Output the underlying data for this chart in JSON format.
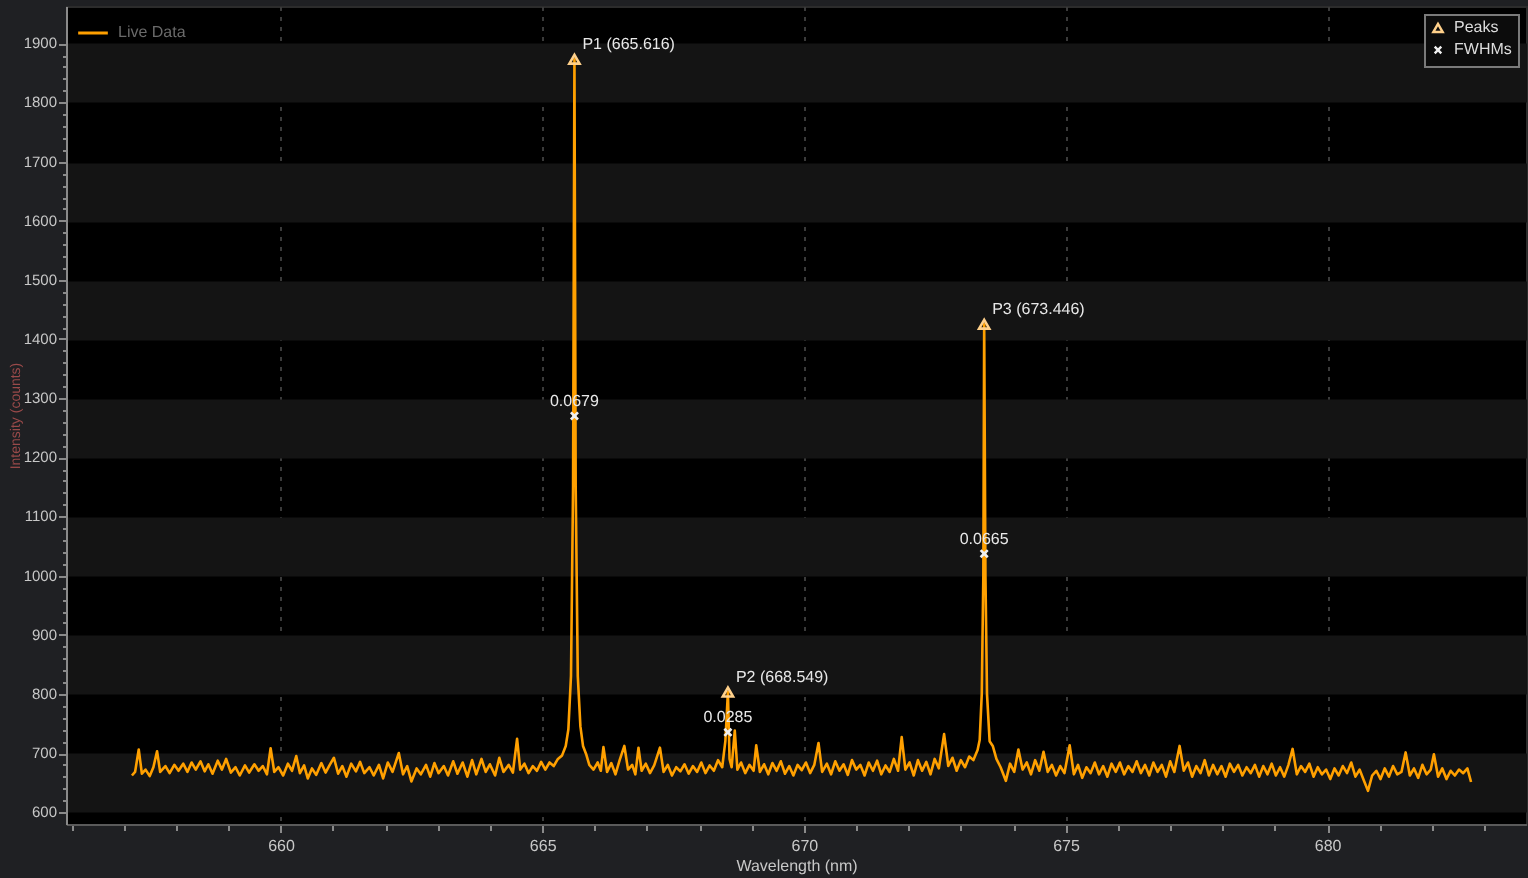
{
  "chart_data": {
    "type": "line",
    "xlabel": "Wavelength (nm)",
    "ylabel": "Intensity (counts)",
    "xlim": [
      655.9,
      683.8
    ],
    "ylim": [
      580,
      1963
    ],
    "xticks": [
      {
        "value": 656,
        "label": null
      },
      {
        "value": 657,
        "label": null
      },
      {
        "value": 658,
        "label": null
      },
      {
        "value": 659,
        "label": null
      },
      660,
      {
        "value": 661,
        "label": null
      },
      {
        "value": 662,
        "label": null
      },
      {
        "value": 663,
        "label": null
      },
      {
        "value": 664,
        "label": null
      },
      665,
      {
        "value": 666,
        "label": null
      },
      {
        "value": 667,
        "label": null
      },
      {
        "value": 668,
        "label": null
      },
      {
        "value": 669,
        "label": null
      },
      670,
      {
        "value": 671,
        "label": null
      },
      {
        "value": 672,
        "label": null
      },
      {
        "value": 673,
        "label": null
      },
      {
        "value": 674,
        "label": null
      },
      675,
      {
        "value": 676,
        "label": null
      },
      {
        "value": 677,
        "label": null
      },
      {
        "value": 678,
        "label": null
      },
      {
        "value": 679,
        "label": null
      },
      680,
      {
        "value": 681,
        "label": null
      },
      {
        "value": 682,
        "label": null
      },
      {
        "value": 683,
        "label": null
      }
    ],
    "yticks": [
      600,
      {
        "value": 620,
        "label": null
      },
      {
        "value": 640,
        "label": null
      },
      {
        "value": 660,
        "label": null
      },
      {
        "value": 680,
        "label": null
      },
      700,
      {
        "value": 720,
        "label": null
      },
      {
        "value": 740,
        "label": null
      },
      {
        "value": 760,
        "label": null
      },
      {
        "value": 780,
        "label": null
      },
      800,
      {
        "value": 820,
        "label": null
      },
      {
        "value": 840,
        "label": null
      },
      {
        "value": 860,
        "label": null
      },
      {
        "value": 880,
        "label": null
      },
      900,
      {
        "value": 920,
        "label": null
      },
      {
        "value": 940,
        "label": null
      },
      {
        "value": 960,
        "label": null
      },
      {
        "value": 980,
        "label": null
      },
      1000,
      {
        "value": 1020,
        "label": null
      },
      {
        "value": 1040,
        "label": null
      },
      {
        "value": 1060,
        "label": null
      },
      {
        "value": 1080,
        "label": null
      },
      1100,
      {
        "value": 1120,
        "label": null
      },
      {
        "value": 1140,
        "label": null
      },
      {
        "value": 1160,
        "label": null
      },
      {
        "value": 1180,
        "label": null
      },
      1200,
      {
        "value": 1220,
        "label": null
      },
      {
        "value": 1240,
        "label": null
      },
      {
        "value": 1260,
        "label": null
      },
      {
        "value": 1280,
        "label": null
      },
      1300,
      {
        "value": 1320,
        "label": null
      },
      {
        "value": 1340,
        "label": null
      },
      {
        "value": 1360,
        "label": null
      },
      {
        "value": 1380,
        "label": null
      },
      1400,
      {
        "value": 1420,
        "label": null
      },
      {
        "value": 1440,
        "label": null
      },
      {
        "value": 1460,
        "label": null
      },
      {
        "value": 1480,
        "label": null
      },
      1500,
      {
        "value": 1520,
        "label": null
      },
      {
        "value": 1540,
        "label": null
      },
      {
        "value": 1560,
        "label": null
      },
      {
        "value": 1580,
        "label": null
      },
      1600,
      {
        "value": 1620,
        "label": null
      },
      {
        "value": 1640,
        "label": null
      },
      {
        "value": 1660,
        "label": null
      },
      {
        "value": 1680,
        "label": null
      },
      1700,
      {
        "value": 1720,
        "label": null
      },
      {
        "value": 1740,
        "label": null
      },
      {
        "value": 1760,
        "label": null
      },
      {
        "value": 1780,
        "label": null
      },
      1800,
      {
        "value": 1820,
        "label": null
      },
      {
        "value": 1840,
        "label": null
      },
      {
        "value": 1860,
        "label": null
      },
      {
        "value": 1880,
        "label": null
      },
      1900
    ],
    "grid": true,
    "legend": "top",
    "annotations": [
      {
        "text": "0.0679",
        "x": 665.616,
        "y": 1270
      },
      {
        "text": "0.0285",
        "x": 668.549,
        "y": 735
      },
      {
        "text": "0.0665",
        "x": 673.446,
        "y": 1037
      }
    ],
    "series": [
      {
        "name": "Live Data",
        "color": "#ffa000",
        "x": [
          657.16,
          657.22,
          657.29,
          657.35,
          657.42,
          657.5,
          657.57,
          657.64,
          657.7,
          657.8,
          657.88,
          657.97,
          658.05,
          658.14,
          658.22,
          658.3,
          658.38,
          658.47,
          658.55,
          658.62,
          658.7,
          658.8,
          658.88,
          658.96,
          659.05,
          659.14,
          659.22,
          659.32,
          659.4,
          659.5,
          659.58,
          659.66,
          659.74,
          659.81,
          659.88,
          659.96,
          660.05,
          660.14,
          660.22,
          660.3,
          660.37,
          660.45,
          660.52,
          660.6,
          660.68,
          660.78,
          660.86,
          660.94,
          661.02,
          661.1,
          661.18,
          661.26,
          661.35,
          661.44,
          661.52,
          661.6,
          661.7,
          661.78,
          661.88,
          661.96,
          662.05,
          662.14,
          662.26,
          662.34,
          662.42,
          662.5,
          662.6,
          662.68,
          662.78,
          662.86,
          662.94,
          663.02,
          663.12,
          663.2,
          663.3,
          663.38,
          663.48,
          663.57,
          663.66,
          663.74,
          663.84,
          663.92,
          664,
          664.1,
          664.18,
          664.26,
          664.36,
          664.44,
          664.52,
          664.58,
          664.66,
          664.74,
          664.82,
          664.9,
          664.98,
          665.06,
          665.14,
          665.22,
          665.3,
          665.38,
          665.45,
          665.5,
          665.55,
          665.59,
          665.616,
          665.64,
          665.68,
          665.73,
          665.78,
          665.84,
          665.9,
          665.98,
          666.06,
          666.12,
          666.17,
          666.24,
          666.32,
          666.4,
          666.48,
          666.57,
          666.64,
          666.72,
          666.78,
          666.84,
          666.9,
          666.98,
          667.06,
          667.14,
          667.25,
          667.32,
          667.4,
          667.48,
          667.56,
          667.64,
          667.72,
          667.8,
          667.88,
          667.96,
          668.04,
          668.12,
          668.2,
          668.28,
          668.36,
          668.44,
          668.5,
          668.549,
          668.58,
          668.62,
          668.68,
          668.73,
          668.8,
          668.88,
          668.96,
          669.04,
          669.09,
          669.16,
          669.24,
          669.32,
          669.4,
          669.48,
          669.56,
          669.64,
          669.72,
          669.8,
          669.88,
          669.96,
          670.04,
          670.12,
          670.2,
          670.28,
          670.35,
          670.44,
          670.52,
          670.6,
          670.68,
          670.76,
          670.84,
          670.92,
          671,
          671.08,
          671.16,
          671.24,
          671.32,
          671.4,
          671.48,
          671.56,
          671.64,
          671.72,
          671.8,
          671.87,
          671.94,
          672.02,
          672.1,
          672.18,
          672.26,
          672.34,
          672.42,
          672.5,
          672.58,
          672.68,
          672.76,
          672.84,
          672.92,
          673,
          673.08,
          673.16,
          673.24,
          673.32,
          673.36,
          673.4,
          673.43,
          673.446,
          673.47,
          673.5,
          673.55,
          673.61,
          673.68,
          673.76,
          673.86,
          673.94,
          674.02,
          674.1,
          674.18,
          674.26,
          674.34,
          674.42,
          674.5,
          674.58,
          674.66,
          674.74,
          674.82,
          674.9,
          674.98,
          675.08,
          675.16,
          675.24,
          675.32,
          675.4,
          675.48,
          675.56,
          675.64,
          675.72,
          675.8,
          675.88,
          675.96,
          676.04,
          676.12,
          676.2,
          676.28,
          676.36,
          676.44,
          676.52,
          676.6,
          676.68,
          676.76,
          676.84,
          676.92,
          677,
          677.08,
          677.18,
          677.26,
          677.34,
          677.42,
          677.5,
          677.58,
          677.66,
          677.74,
          677.82,
          677.9,
          677.98,
          678.06,
          678.14,
          678.22,
          678.3,
          678.38,
          678.46,
          678.54,
          678.62,
          678.7,
          678.78,
          678.86,
          678.94,
          679.02,
          679.1,
          679.18,
          679.26,
          679.34,
          679.42,
          679.5,
          679.58,
          679.66,
          679.74,
          679.82,
          679.9,
          679.98,
          680.06,
          680.14,
          680.22,
          680.3,
          680.38,
          680.46,
          680.54,
          680.62,
          680.7,
          680.78,
          680.86,
          680.94,
          681.02,
          681.1,
          681.18,
          681.26,
          681.34,
          681.42,
          681.5,
          681.58,
          681.66,
          681.74,
          681.82,
          681.9,
          681.98,
          682.04,
          682.12,
          682.2,
          682.28,
          682.36,
          682.44,
          682.52,
          682.6,
          682.68,
          682.75
        ],
        "values": [
          662,
          668,
          706,
          665,
          672,
          661,
          676,
          703,
          668,
          678,
          666,
          680,
          670,
          682,
          668,
          684,
          672,
          686,
          669,
          681,
          665,
          687,
          672,
          690,
          667,
          676,
          662,
          679,
          667,
          681,
          670,
          678,
          664,
          708,
          668,
          676,
          662,
          682,
          670,
          695,
          666,
          679,
          657,
          674,
          663,
          683,
          667,
          680,
          692,
          665,
          678,
          660,
          682,
          669,
          685,
          666,
          676,
          662,
          680,
          657,
          684,
          668,
          700,
          664,
          678,
          652,
          674,
          664,
          680,
          660,
          683,
          666,
          678,
          662,
          686,
          665,
          684,
          660,
          688,
          664,
          690,
          668,
          681,
          662,
          692,
          668,
          680,
          667,
          724,
          672,
          682,
          666,
          678,
          670,
          685,
          672,
          684,
          678,
          690,
          696,
          712,
          740,
          830,
          1150,
          1873,
          1150,
          830,
          745,
          712,
          698,
          680,
          672,
          684,
          670,
          710,
          668,
          683,
          664,
          688,
          712,
          672,
          680,
          664,
          709,
          670,
          682,
          666,
          679,
          709,
          668,
          680,
          662,
          676,
          669,
          681,
          665,
          678,
          668,
          684,
          666,
          679,
          670,
          688,
          676,
          720,
          803,
          690,
          676,
          738,
          672,
          684,
          666,
          680,
          670,
          713,
          668,
          681,
          664,
          683,
          670,
          686,
          665,
          678,
          662,
          680,
          671,
          684,
          666,
          680,
          717,
          668,
          682,
          664,
          686,
          670,
          681,
          663,
          688,
          672,
          680,
          662,
          684,
          670,
          687,
          664,
          679,
          668,
          690,
          670,
          727,
          672,
          684,
          662,
          688,
          670,
          685,
          664,
          690,
          674,
          732,
          678,
          692,
          670,
          688,
          676,
          694,
          688,
          705,
          722,
          800,
          1000,
          1425,
          1000,
          800,
          720,
          712,
          690,
          676,
          653,
          682,
          668,
          706,
          672,
          684,
          664,
          688,
          670,
          702,
          668,
          680,
          662,
          678,
          666,
          713,
          664,
          680,
          658,
          676,
          666,
          684,
          664,
          678,
          660,
          682,
          668,
          684,
          664,
          678,
          668,
          686,
          666,
          680,
          662,
          684,
          668,
          680,
          660,
          686,
          668,
          712,
          670,
          684,
          660,
          678,
          666,
          688,
          662,
          680,
          664,
          678,
          660,
          682,
          668,
          680,
          662,
          676,
          666,
          680,
          660,
          678,
          664,
          682,
          662,
          676,
          660,
          680,
          707,
          664,
          678,
          668,
          682,
          660,
          676,
          664,
          672,
          656,
          674,
          662,
          678,
          666,
          684,
          660,
          672,
          654,
          636,
          662,
          670,
          656,
          674,
          660,
          678,
          664,
          668,
          701,
          662,
          674,
          658,
          680,
          664,
          672,
          698,
          660,
          674,
          656,
          670,
          662,
          672,
          666,
          674,
          651
        ]
      },
      {
        "name": "Peaks",
        "type": "scatter",
        "marker": "triangle",
        "color": "#ffd08a",
        "x": [
          665.616,
          668.549,
          673.446
        ],
        "values": [
          1873,
          803,
          1425
        ],
        "value_labels": [
          "P1 (665.616)",
          "P2 (668.549)",
          "P3 (673.446)"
        ]
      },
      {
        "name": "FWHMs",
        "type": "scatter",
        "marker": "cross",
        "color": "#f0f0f0",
        "x": [
          665.616,
          668.549,
          673.446
        ],
        "values": [
          1270,
          735,
          1037
        ]
      }
    ]
  }
}
